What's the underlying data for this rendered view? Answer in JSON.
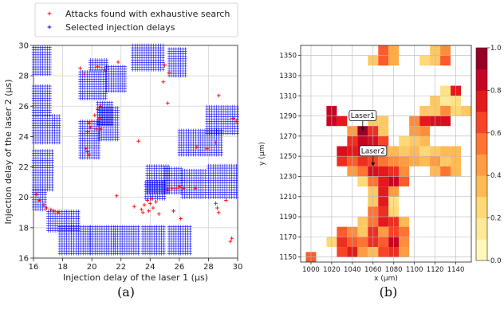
{
  "chart_data": [
    {
      "type": "scatter",
      "caption": "(a)",
      "xlabel": "Injection delay of the laser 1 (µs)",
      "ylabel": "Injection delay of the laser 2 (µs)",
      "xlim": [
        16,
        30
      ],
      "ylim": [
        16,
        30
      ],
      "xticks": [
        "16",
        "18",
        "20",
        "22",
        "24",
        "26",
        "28",
        "30"
      ],
      "yticks": [
        "16",
        "18",
        "20",
        "22",
        "24",
        "26",
        "28",
        "30"
      ],
      "grid": true,
      "legend_position": "top",
      "series": [
        {
          "name": "Attacks found with exhaustive search",
          "marker": "+",
          "color": "#ff0000",
          "points": [
            [
              16.2,
              20.2
            ],
            [
              16.4,
              19.8
            ],
            [
              16.7,
              19.5
            ],
            [
              16.9,
              19.3
            ],
            [
              17.2,
              19.2
            ],
            [
              17.4,
              19.1
            ],
            [
              17.7,
              19.0
            ],
            [
              19.2,
              28.5
            ],
            [
              19.5,
              28.1
            ],
            [
              20.4,
              28.6
            ],
            [
              20.9,
              28.4
            ],
            [
              21.8,
              28.9
            ],
            [
              25.0,
              28.7
            ],
            [
              25.3,
              28.2
            ],
            [
              24.9,
              27.6
            ],
            [
              25.2,
              26.2
            ],
            [
              19.7,
              24.3
            ],
            [
              19.9,
              24.6
            ],
            [
              20.0,
              25.0
            ],
            [
              20.2,
              25.4
            ],
            [
              20.4,
              25.8
            ],
            [
              20.6,
              26.0
            ],
            [
              19.8,
              24.9
            ],
            [
              20.3,
              24.5
            ],
            [
              20.5,
              25.2
            ],
            [
              19.7,
              23.0
            ],
            [
              19.8,
              22.8
            ],
            [
              19.6,
              23.2
            ],
            [
              20.6,
              24.5
            ],
            [
              21.7,
              20.1
            ],
            [
              22.9,
              19.4
            ],
            [
              23.2,
              23.7
            ],
            [
              23.4,
              19.2
            ],
            [
              23.6,
              19.5
            ],
            [
              23.8,
              19.8
            ],
            [
              24.0,
              19.6
            ],
            [
              24.2,
              19.3
            ],
            [
              24.4,
              19.7
            ],
            [
              23.9,
              19.1
            ],
            [
              24.1,
              19.9
            ],
            [
              23.5,
              19.0
            ],
            [
              25.2,
              20.5
            ],
            [
              25.5,
              20.6
            ],
            [
              25.8,
              20.6
            ],
            [
              26.0,
              20.7
            ],
            [
              26.3,
              20.6
            ],
            [
              27.1,
              20.6
            ],
            [
              27.2,
              23.3
            ],
            [
              27.9,
              23.2
            ],
            [
              28.5,
              23.6
            ],
            [
              28.7,
              26.7
            ],
            [
              28.5,
              19.6
            ],
            [
              28.6,
              19.3
            ],
            [
              28.7,
              19.0
            ],
            [
              29.2,
              19.8
            ],
            [
              29.5,
              17.1
            ],
            [
              29.6,
              17.3
            ],
            [
              29.7,
              25.2
            ],
            [
              29.9,
              25.0
            ],
            [
              24.6,
              18.9
            ],
            [
              25.6,
              19.1
            ],
            [
              26.1,
              18.6
            ]
          ]
        },
        {
          "name": "Selected injection delays",
          "marker": "+",
          "color": "#0000ff",
          "clusters": [
            {
              "x": [
                16.0,
                17.2
              ],
              "y": [
                28.1,
                30.0
              ]
            },
            {
              "x": [
                16.0,
                17.2
              ],
              "y": [
                25.4,
                27.4
              ]
            },
            {
              "x": [
                16.0,
                17.8
              ],
              "y": [
                23.6,
                25.5
              ]
            },
            {
              "x": [
                16.0,
                17.3
              ],
              "y": [
                20.5,
                23.2
              ]
            },
            {
              "x": [
                16.0,
                16.9
              ],
              "y": [
                19.2,
                20.5
              ]
            },
            {
              "x": [
                17.0,
                19.2
              ],
              "y": [
                17.8,
                19.1
              ]
            },
            {
              "x": [
                17.8,
                19.9
              ],
              "y": [
                16.3,
                18.1
              ]
            },
            {
              "x": [
                19.9,
                21.5
              ],
              "y": [
                16.3,
                18.1
              ]
            },
            {
              "x": [
                21.6,
                23.3
              ],
              "y": [
                16.3,
                18.1
              ]
            },
            {
              "x": [
                23.5,
                25.0
              ],
              "y": [
                16.3,
                18.1
              ]
            },
            {
              "x": [
                25.3,
                26.8
              ],
              "y": [
                16.3,
                18.1
              ]
            },
            {
              "x": [
                19.9,
                21.1
              ],
              "y": [
                28.4,
                29.1
              ]
            },
            {
              "x": [
                19.2,
                21.0
              ],
              "y": [
                26.5,
                28.3
              ]
            },
            {
              "x": [
                21.0,
                22.4
              ],
              "y": [
                27.0,
                28.7
              ]
            },
            {
              "x": [
                22.8,
                24.9
              ],
              "y": [
                28.4,
                30.0
              ]
            },
            {
              "x": [
                25.3,
                26.5
              ],
              "y": [
                28.0,
                29.8
              ]
            },
            {
              "x": [
                19.2,
                20.6
              ],
              "y": [
                22.6,
                25.0
              ]
            },
            {
              "x": [
                20.5,
                21.8
              ],
              "y": [
                23.8,
                25.9
              ]
            },
            {
              "x": [
                20.4,
                21.5
              ],
              "y": [
                24.8,
                26.3
              ]
            },
            {
              "x": [
                26.0,
                29.0
              ],
              "y": [
                22.8,
                24.5
              ]
            },
            {
              "x": [
                27.9,
                30.0
              ],
              "y": [
                24.2,
                26.0
              ]
            },
            {
              "x": [
                23.8,
                25.3
              ],
              "y": [
                20.3,
                22.1
              ]
            },
            {
              "x": [
                25.0,
                26.2
              ],
              "y": [
                20.3,
                22.0
              ]
            },
            {
              "x": [
                23.7,
                25.0
              ],
              "y": [
                19.9,
                21.1
              ]
            },
            {
              "x": [
                26.2,
                27.8
              ],
              "y": [
                20.0,
                21.8
              ]
            },
            {
              "x": [
                28.0,
                30.0
              ],
              "y": [
                20.0,
                22.2
              ]
            }
          ]
        }
      ]
    },
    {
      "type": "heatmap",
      "caption": "(b)",
      "xlabel": "x (μm)",
      "ylabel": "y (μm)",
      "xticks": [
        "1000",
        "1020",
        "1040",
        "1060",
        "1080",
        "1100",
        "1120",
        "1140"
      ],
      "yticks": [
        "1150",
        "1170",
        "1190",
        "1210",
        "1230",
        "1250",
        "1270",
        "1290",
        "1310",
        "1330",
        "1350"
      ],
      "colorbar": {
        "ticks": [
          "0.0",
          "0.2",
          "0.4",
          "0.6",
          "0.8",
          "1.0"
        ],
        "range": [
          0,
          1
        ],
        "colormap": "YlOrRd"
      },
      "grid": true,
      "annotations": [
        {
          "text": "Laser1",
          "at": [
            1050,
            1275
          ]
        },
        {
          "text": "Laser2",
          "at": [
            1060,
            1240
          ]
        }
      ],
      "cells": [
        [
          1070,
          1355,
          0.6
        ],
        [
          1080,
          1355,
          0.4
        ],
        [
          1120,
          1355,
          0.3
        ],
        [
          1130,
          1355,
          0.5
        ],
        [
          1060,
          1345,
          0.3
        ],
        [
          1070,
          1345,
          0.6
        ],
        [
          1080,
          1345,
          0.4
        ],
        [
          1110,
          1345,
          0.25
        ],
        [
          1120,
          1345,
          0.3
        ],
        [
          1130,
          1345,
          0.6
        ],
        [
          1130,
          1315,
          0.2
        ],
        [
          1140,
          1315,
          0.75
        ],
        [
          1120,
          1305,
          0.3
        ],
        [
          1130,
          1305,
          0.15
        ],
        [
          1140,
          1305,
          0.2
        ],
        [
          1020,
          1295,
          0.85
        ],
        [
          1110,
          1295,
          0.3
        ],
        [
          1120,
          1295,
          0.3
        ],
        [
          1130,
          1295,
          0.5
        ],
        [
          1140,
          1295,
          0.25
        ],
        [
          1150,
          1295,
          0.3
        ],
        [
          1020,
          1285,
          0.85
        ],
        [
          1030,
          1285,
          0.75
        ],
        [
          1070,
          1285,
          0.3
        ],
        [
          1110,
          1285,
          0.75
        ],
        [
          1120,
          1285,
          0.8
        ],
        [
          1130,
          1285,
          0.8
        ],
        [
          1100,
          1285,
          0.5
        ],
        [
          1060,
          1285,
          0.3
        ],
        [
          1040,
          1275,
          0.45
        ],
        [
          1050,
          1275,
          0.95
        ],
        [
          1060,
          1275,
          0.7
        ],
        [
          1070,
          1275,
          0.3
        ],
        [
          1100,
          1275,
          0.45
        ],
        [
          1110,
          1275,
          0.5
        ],
        [
          1040,
          1265,
          0.7
        ],
        [
          1050,
          1265,
          0.85
        ],
        [
          1060,
          1265,
          0.8
        ],
        [
          1070,
          1265,
          0.65
        ],
        [
          1090,
          1265,
          0.25
        ],
        [
          1100,
          1265,
          0.3
        ],
        [
          1110,
          1265,
          0.35
        ],
        [
          1030,
          1255,
          0.8
        ],
        [
          1040,
          1255,
          0.75
        ],
        [
          1050,
          1255,
          0.85
        ],
        [
          1060,
          1255,
          0.6
        ],
        [
          1070,
          1255,
          0.45
        ],
        [
          1080,
          1255,
          0.35
        ],
        [
          1090,
          1255,
          0.3
        ],
        [
          1100,
          1255,
          0.35
        ],
        [
          1110,
          1255,
          0.25
        ],
        [
          1120,
          1255,
          0.3
        ],
        [
          1130,
          1255,
          0.35
        ],
        [
          1140,
          1255,
          0.35
        ],
        [
          1030,
          1245,
          0.7
        ],
        [
          1040,
          1245,
          0.6
        ],
        [
          1050,
          1245,
          0.7
        ],
        [
          1060,
          1245,
          0.65
        ],
        [
          1070,
          1245,
          0.55
        ],
        [
          1080,
          1245,
          0.5
        ],
        [
          1090,
          1245,
          0.45
        ],
        [
          1100,
          1245,
          0.4
        ],
        [
          1110,
          1245,
          0.35
        ],
        [
          1120,
          1245,
          0.45
        ],
        [
          1130,
          1245,
          0.3
        ],
        [
          1140,
          1245,
          0.35
        ],
        [
          1040,
          1235,
          0.45
        ],
        [
          1050,
          1235,
          0.55
        ],
        [
          1060,
          1235,
          0.8
        ],
        [
          1070,
          1235,
          0.75
        ],
        [
          1080,
          1235,
          0.7
        ],
        [
          1090,
          1235,
          0.5
        ],
        [
          1120,
          1235,
          0.35
        ],
        [
          1130,
          1235,
          0.55
        ],
        [
          1140,
          1235,
          0.35
        ],
        [
          1050,
          1225,
          0.25
        ],
        [
          1060,
          1225,
          0.55
        ],
        [
          1070,
          1225,
          0.75
        ],
        [
          1080,
          1225,
          0.85
        ],
        [
          1090,
          1225,
          0.6
        ],
        [
          1060,
          1215,
          0.3
        ],
        [
          1070,
          1215,
          0.75
        ],
        [
          1080,
          1215,
          0.45
        ],
        [
          1060,
          1205,
          0.3
        ],
        [
          1070,
          1205,
          0.75
        ],
        [
          1080,
          1205,
          0.2
        ],
        [
          1060,
          1195,
          0.55
        ],
        [
          1070,
          1195,
          0.7
        ],
        [
          1080,
          1195,
          0.25
        ],
        [
          1050,
          1185,
          0.3
        ],
        [
          1060,
          1185,
          0.55
        ],
        [
          1070,
          1185,
          0.75
        ],
        [
          1080,
          1185,
          0.7
        ],
        [
          1090,
          1185,
          0.35
        ],
        [
          1030,
          1175,
          0.6
        ],
        [
          1040,
          1175,
          0.5
        ],
        [
          1050,
          1175,
          0.3
        ],
        [
          1060,
          1175,
          0.7
        ],
        [
          1070,
          1175,
          0.45
        ],
        [
          1080,
          1175,
          0.65
        ],
        [
          1090,
          1175,
          0.55
        ],
        [
          1020,
          1165,
          0.25
        ],
        [
          1030,
          1165,
          0.7
        ],
        [
          1040,
          1165,
          0.6
        ],
        [
          1050,
          1165,
          0.55
        ],
        [
          1060,
          1165,
          0.7
        ],
        [
          1070,
          1165,
          0.6
        ],
        [
          1080,
          1165,
          0.85
        ],
        [
          1090,
          1165,
          0.5
        ],
        [
          1030,
          1155,
          0.65
        ],
        [
          1040,
          1155,
          0.75
        ],
        [
          1050,
          1155,
          0.45
        ],
        [
          1060,
          1155,
          0.35
        ],
        [
          1070,
          1155,
          0.65
        ],
        [
          1080,
          1155,
          0.7
        ],
        [
          1090,
          1155,
          0.45
        ],
        [
          1000,
          1150,
          0.6
        ]
      ]
    }
  ]
}
